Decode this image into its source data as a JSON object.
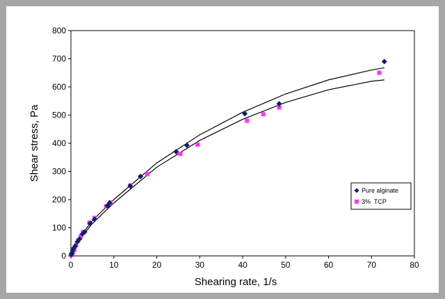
{
  "chart_data": {
    "type": "scatter",
    "title": "",
    "xlabel": "Shearing rate, 1/s",
    "ylabel": "Shear stress, Pa",
    "xlim": [
      0,
      80
    ],
    "ylim": [
      0,
      800
    ],
    "xticks": [
      "0",
      "10",
      "20",
      "30",
      "40",
      "50",
      "60",
      "70",
      "80"
    ],
    "yticks": [
      "0",
      "100",
      "200",
      "300",
      "400",
      "500",
      "600",
      "700",
      "800"
    ],
    "grid": false,
    "legend_position": "right",
    "series": [
      {
        "name": "Pure alginate",
        "marker": "diamond",
        "color": "#0b1f6b",
        "points": [
          [
            0.1,
            5
          ],
          [
            0.2,
            10
          ],
          [
            0.4,
            20
          ],
          [
            0.7,
            28
          ],
          [
            1.0,
            35
          ],
          [
            1.5,
            50
          ],
          [
            2.0,
            60
          ],
          [
            2.7,
            78
          ],
          [
            3.2,
            85
          ],
          [
            4.5,
            115
          ],
          [
            5.5,
            130
          ],
          [
            8.5,
            178
          ],
          [
            9.0,
            188
          ],
          [
            13.8,
            248
          ],
          [
            16.2,
            282
          ],
          [
            24.5,
            370
          ],
          [
            27.0,
            393
          ],
          [
            40.5,
            505
          ],
          [
            48.5,
            540
          ],
          [
            73.0,
            690
          ]
        ]
      },
      {
        "name": "3%  TCP",
        "marker": "square",
        "color": "#ff33ff",
        "points": [
          [
            0.1,
            3
          ],
          [
            0.3,
            8
          ],
          [
            0.5,
            15
          ],
          [
            0.8,
            22
          ],
          [
            1.2,
            38
          ],
          [
            1.7,
            55
          ],
          [
            2.3,
            70
          ],
          [
            2.8,
            85
          ],
          [
            4.3,
            118
          ],
          [
            5.5,
            135
          ],
          [
            8.2,
            176
          ],
          [
            9.2,
            190
          ],
          [
            13.8,
            250
          ],
          [
            17.8,
            290
          ],
          [
            25.5,
            362
          ],
          [
            29.5,
            395
          ],
          [
            41.0,
            480
          ],
          [
            44.8,
            503
          ],
          [
            48.5,
            527
          ],
          [
            71.8,
            650
          ]
        ]
      }
    ],
    "fit_lines": [
      {
        "points": [
          [
            0,
            0
          ],
          [
            2,
            65
          ],
          [
            5,
            125
          ],
          [
            10,
            200
          ],
          [
            20,
            330
          ],
          [
            30,
            430
          ],
          [
            40,
            510
          ],
          [
            50,
            575
          ],
          [
            60,
            625
          ],
          [
            70,
            660
          ],
          [
            73,
            668
          ]
        ]
      },
      {
        "points": [
          [
            0,
            0
          ],
          [
            2,
            58
          ],
          [
            5,
            115
          ],
          [
            10,
            188
          ],
          [
            20,
            315
          ],
          [
            30,
            410
          ],
          [
            40,
            485
          ],
          [
            50,
            545
          ],
          [
            60,
            590
          ],
          [
            70,
            620
          ],
          [
            73,
            625
          ]
        ]
      }
    ]
  }
}
